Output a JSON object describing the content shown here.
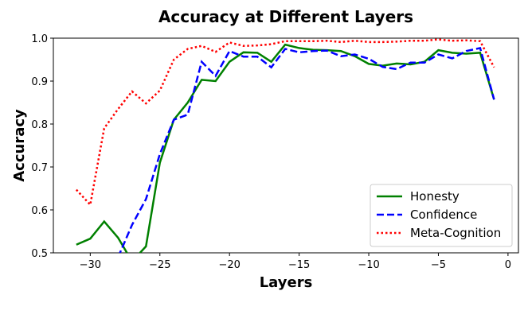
{
  "chart_data": {
    "type": "line",
    "title": "Accuracy at Different Layers",
    "x_label": "Layers",
    "y_label": "Accuracy",
    "x": [
      -31,
      -30,
      -29,
      -28,
      -27,
      -26,
      -25,
      -24,
      -23,
      -22,
      -21,
      -20,
      -19,
      -18,
      -17,
      -16,
      -15,
      -14,
      -13,
      -12,
      -11,
      -10,
      -9,
      -8,
      -7,
      -6,
      -5,
      -4,
      -3,
      -2,
      -1
    ],
    "series": [
      {
        "name": "Honesty",
        "color": "#008000",
        "dash": "solid",
        "values": [
          0.519,
          0.533,
          0.573,
          0.535,
          0.48,
          0.515,
          0.71,
          0.81,
          0.85,
          0.903,
          0.9,
          0.945,
          0.967,
          0.966,
          0.945,
          0.985,
          0.977,
          0.973,
          0.972,
          0.97,
          0.958,
          0.94,
          0.936,
          0.941,
          0.939,
          0.945,
          0.972,
          0.966,
          0.964,
          0.966,
          0.857
        ]
      },
      {
        "name": "Confidence",
        "color": "#0000ff",
        "dash": "dashed",
        "values": [
          null,
          null,
          null,
          0.49,
          0.565,
          0.625,
          0.73,
          0.81,
          0.822,
          0.945,
          0.912,
          0.97,
          0.957,
          0.957,
          0.932,
          0.975,
          0.967,
          0.97,
          0.971,
          0.958,
          0.962,
          0.952,
          0.933,
          0.928,
          0.943,
          0.943,
          0.962,
          0.953,
          0.97,
          0.977,
          0.857
        ]
      },
      {
        "name": "Meta-Cognition",
        "color": "#ff0000",
        "dash": "dotted",
        "values": [
          0.647,
          0.612,
          0.79,
          0.835,
          0.876,
          0.848,
          0.878,
          0.95,
          0.975,
          0.982,
          0.968,
          0.99,
          0.982,
          0.983,
          0.986,
          0.993,
          0.993,
          0.993,
          0.994,
          0.991,
          0.994,
          0.991,
          0.991,
          0.992,
          0.994,
          0.994,
          0.997,
          0.994,
          0.995,
          0.993,
          0.932
        ]
      }
    ],
    "xlim": [
      -32.65,
      0.75
    ],
    "xticks": [
      {
        "value": -30,
        "label": "−30"
      },
      {
        "value": -25,
        "label": "−25"
      },
      {
        "value": -20,
        "label": "−20"
      },
      {
        "value": -15,
        "label": "−15"
      },
      {
        "value": -10,
        "label": "−10"
      },
      {
        "value": -5,
        "label": "−5"
      },
      0
    ],
    "ylim": [
      0.5,
      1.0
    ],
    "yticks": [
      0.5,
      0.6,
      0.7,
      0.8,
      0.9,
      {
        "value": 1.0,
        "label": "1.0"
      }
    ],
    "legend": "lower right"
  }
}
